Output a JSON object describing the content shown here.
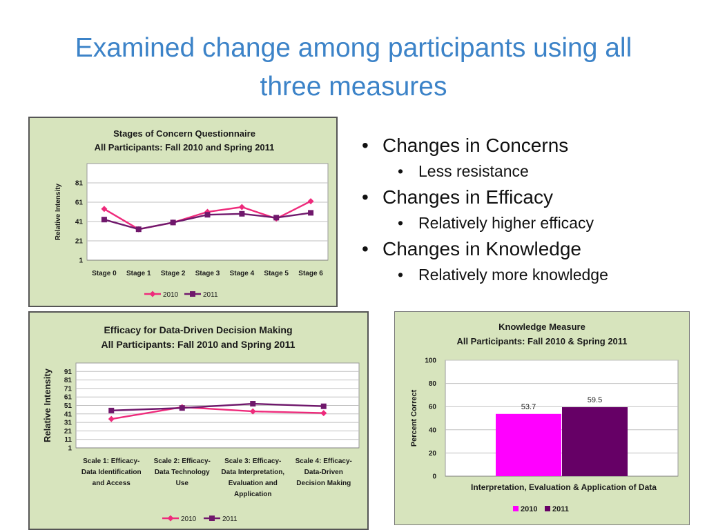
{
  "slide": {
    "title_line1": "Examined change among participants using all",
    "title_line2": "three measures"
  },
  "bullets": [
    {
      "text": "Changes in Concerns",
      "sub": "Less resistance"
    },
    {
      "text": "Changes in Efficacy",
      "sub": "Relatively higher efficacy"
    },
    {
      "text": "Changes in Knowledge",
      "sub": "Relatively more knowledge"
    }
  ],
  "colors": {
    "panel_bg": "#d7e4bd",
    "series_2010": "#ee2a7b",
    "series_2011": "#70186c",
    "bar_2010": "#ff00ff",
    "bar_2011": "#660066",
    "title": "#3c83c8"
  },
  "chart_data": [
    {
      "type": "line",
      "title": "Stages of Concern Questionnaire",
      "subtitle": "All Participants: Fall 2010 and Spring 2011",
      "ylabel": "Relative Intensity",
      "xlabel": "",
      "categories": [
        "Stage 0",
        "Stage 1",
        "Stage 2",
        "Stage 3",
        "Stage 4",
        "Stage 5",
        "Stage 6"
      ],
      "yticks": [
        1,
        21,
        41,
        61,
        81
      ],
      "ylim": [
        1,
        101
      ],
      "grid": true,
      "legend": "bottom",
      "series": [
        {
          "name": "2010",
          "marker": "diamond",
          "values": [
            54,
            33,
            40,
            51,
            56,
            44,
            62
          ]
        },
        {
          "name": "2011",
          "marker": "square",
          "values": [
            43,
            33,
            40,
            48,
            49,
            45,
            50
          ]
        }
      ]
    },
    {
      "type": "line",
      "title": "Efficacy for Data-Driven Decision Making",
      "subtitle": "All Participants: Fall 2010 and Spring 2011",
      "ylabel": "Relative Intensity",
      "xlabel": "",
      "categories": [
        [
          "Scale 1: Efficacy-",
          "Data Identification",
          "and Access"
        ],
        [
          "Scale 2: Efficacy-",
          "Data Technology",
          "Use"
        ],
        [
          "Scale 3: Efficacy-",
          "Data Interpretation,",
          "Evaluation and",
          "Application"
        ],
        [
          "Scale 4: Efficacy-",
          "Data-Driven",
          "Decision Making"
        ]
      ],
      "yticks": [
        1,
        11,
        21,
        31,
        41,
        51,
        61,
        71,
        81,
        91
      ],
      "ylim": [
        1,
        101
      ],
      "grid": true,
      "legend": "bottom",
      "series": [
        {
          "name": "2010",
          "marker": "diamond",
          "values": [
            35,
            49,
            44,
            42
          ]
        },
        {
          "name": "2011",
          "marker": "square",
          "values": [
            45,
            48,
            53,
            50
          ]
        }
      ]
    },
    {
      "type": "bar",
      "title": "Knowledge Measure",
      "subtitle": "All Participants: Fall 2010 & Spring 2011",
      "ylabel": "Percent Correct",
      "xlabel": "",
      "categories": [
        "Interpretation, Evaluation & Application of Data"
      ],
      "yticks": [
        0,
        20,
        40,
        60,
        80,
        100
      ],
      "ylim": [
        0,
        100
      ],
      "grid": true,
      "legend": "bottom",
      "series": [
        {
          "name": "2010",
          "values": [
            53.7
          ],
          "label": "53.7"
        },
        {
          "name": "2011",
          "values": [
            59.5
          ],
          "label": "59.5"
        }
      ]
    }
  ]
}
